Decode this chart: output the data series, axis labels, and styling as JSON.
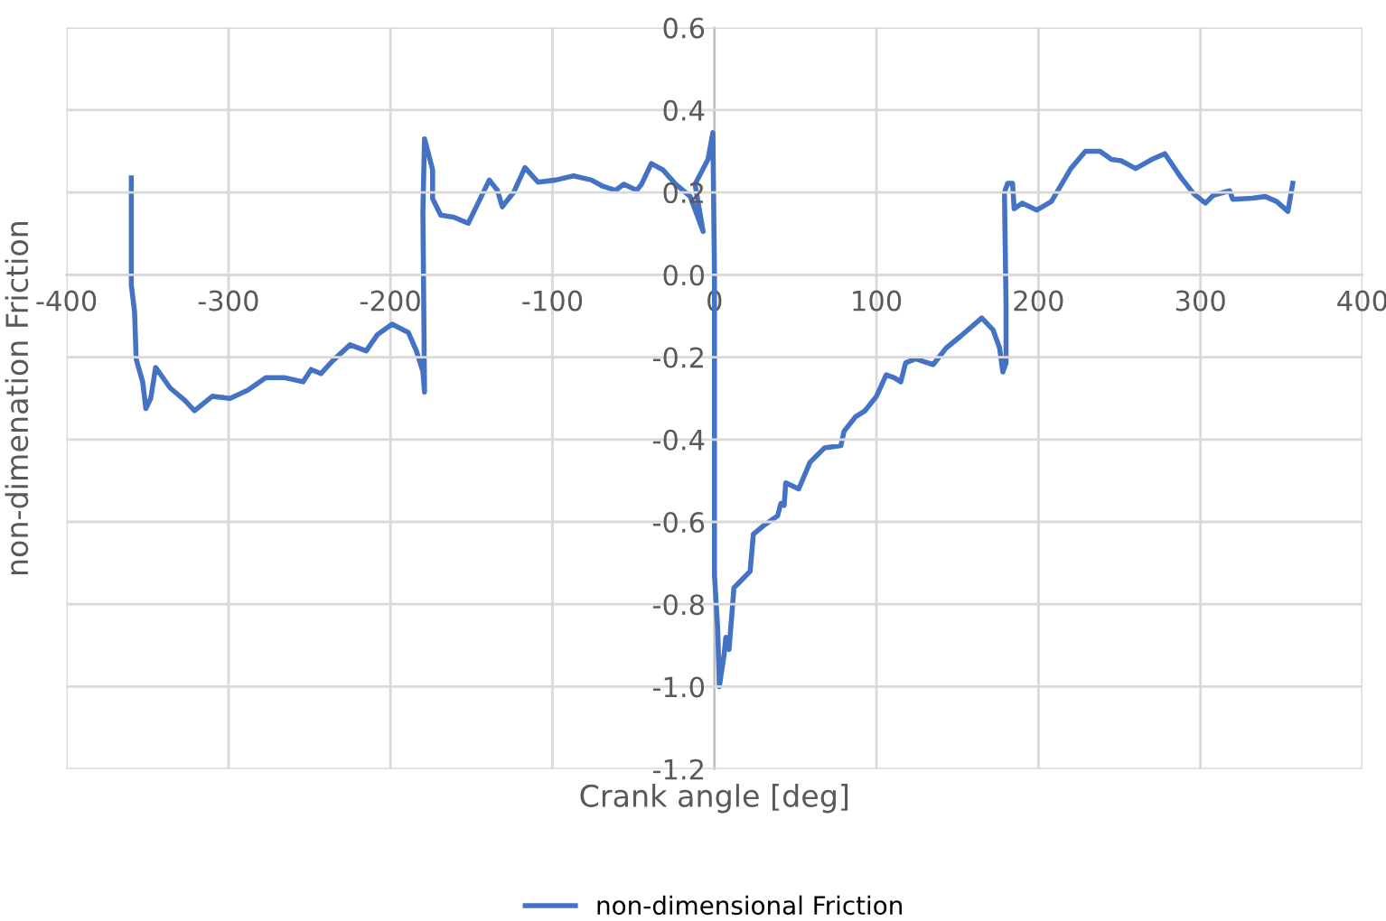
{
  "chart_data": {
    "type": "line",
    "xlabel": "Crank angle [deg]",
    "ylabel": "non-dimenation Friction",
    "xlim": [
      -400,
      400
    ],
    "xticks": [
      -400,
      -300,
      -200,
      -100,
      0,
      100,
      200,
      300,
      400
    ],
    "ylim": [
      -1.2,
      0.6
    ],
    "yticks": [
      {
        "value": -1.2,
        "label": "-1.2"
      },
      {
        "value": -1.0,
        "label": "-1.0"
      },
      {
        "value": -0.8,
        "label": "-0.8"
      },
      {
        "value": -0.6,
        "label": "-0.6"
      },
      {
        "value": -0.4,
        "label": "-0.4"
      },
      {
        "value": -0.2,
        "label": "-0.2"
      },
      {
        "value": 0.0,
        "label": "0.0"
      },
      {
        "value": 0.2,
        "label": "0.2"
      },
      {
        "value": 0.4,
        "label": "0.4"
      },
      {
        "value": 0.6,
        "label": "0.6"
      }
    ],
    "grid": true,
    "legend": "bottom",
    "marker": "none",
    "line_style": "solid",
    "series": [
      {
        "name": "non-dimensional Friction",
        "color": "#4472c4",
        "x": [
          -360,
          -360,
          -358,
          -357,
          -353,
          -351,
          -348,
          -345,
          -336,
          -327,
          -321,
          -310,
          -299,
          -288,
          -277,
          -265,
          -254,
          -249,
          -243,
          -236,
          -225,
          -215,
          -208,
          -199,
          -189,
          -184,
          -180,
          -179,
          -180,
          -179,
          -174,
          -174,
          -169,
          -161,
          -152,
          -139,
          -134,
          -131,
          -124,
          -117,
          -109,
          -98,
          -87,
          -76,
          -69,
          -61,
          -56,
          -48,
          -45,
          -39,
          -32,
          -24,
          -15,
          -7,
          -12,
          -4,
          -1,
          0,
          0,
          2,
          3,
          6,
          7,
          9,
          12,
          22,
          24,
          30,
          39,
          41,
          43,
          44,
          52,
          59,
          68,
          78,
          80,
          87,
          93,
          100,
          106,
          111,
          115,
          118,
          124,
          135,
          143,
          152,
          165,
          172,
          176,
          178,
          180,
          180,
          179,
          181,
          184,
          185,
          190,
          199,
          208,
          220,
          229,
          238,
          245,
          251,
          260,
          270,
          278,
          288,
          296,
          303,
          308,
          318,
          320,
          332,
          340,
          347,
          354,
          357
        ],
        "values": [
          0.235,
          -0.025,
          -0.09,
          -0.205,
          -0.26,
          -0.325,
          -0.3,
          -0.225,
          -0.275,
          -0.305,
          -0.33,
          -0.295,
          -0.3,
          -0.28,
          -0.25,
          -0.25,
          -0.26,
          -0.23,
          -0.24,
          -0.21,
          -0.17,
          -0.185,
          -0.145,
          -0.12,
          -0.14,
          -0.185,
          -0.235,
          -0.285,
          0.155,
          0.33,
          0.255,
          0.185,
          0.145,
          0.14,
          0.125,
          0.23,
          0.205,
          0.165,
          0.2,
          0.26,
          0.225,
          0.23,
          0.24,
          0.23,
          0.215,
          0.205,
          0.22,
          0.205,
          0.22,
          0.27,
          0.255,
          0.22,
          0.19,
          0.105,
          0.22,
          0.28,
          0.345,
          0.0,
          -0.73,
          -0.86,
          -1.0,
          -0.92,
          -0.88,
          -0.91,
          -0.76,
          -0.72,
          -0.63,
          -0.61,
          -0.585,
          -0.555,
          -0.56,
          -0.505,
          -0.52,
          -0.455,
          -0.42,
          -0.415,
          -0.38,
          -0.345,
          -0.33,
          -0.295,
          -0.243,
          -0.25,
          -0.26,
          -0.214,
          -0.204,
          -0.218,
          -0.178,
          -0.149,
          -0.105,
          -0.134,
          -0.178,
          -0.236,
          -0.214,
          -0.076,
          0.2,
          0.222,
          0.222,
          0.16,
          0.174,
          0.157,
          0.178,
          0.258,
          0.3,
          0.3,
          0.28,
          0.277,
          0.258,
          0.28,
          0.294,
          0.236,
          0.196,
          0.174,
          0.193,
          0.204,
          0.183,
          0.186,
          0.19,
          0.178,
          0.154,
          0.222
        ]
      }
    ]
  }
}
